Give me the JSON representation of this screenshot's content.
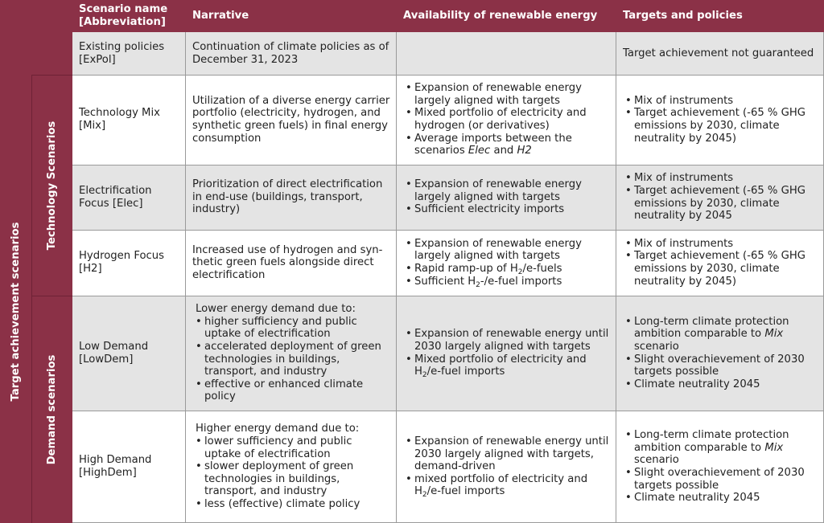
{
  "header": {
    "scenario": "Scenario name [Abbreviation]",
    "narrative": "Narrative",
    "availability": "Availability of renewable energy",
    "targets": "Targets and policies"
  },
  "groups": {
    "target_achievement": "Target achievement scenarios",
    "technology": "Technology Scenarios",
    "demand": "Demand scenarios"
  },
  "rows": {
    "expol": {
      "name": "Existing policies [ExPol]",
      "narrative": "Continuation of climate policies as of December 31, 2023",
      "targets": "Target achievement not guaranteed"
    },
    "mix": {
      "name": "Technology Mix [Mix]",
      "narrative": "Utilization of a diverse energy carrier portfolio (electricity, hydrogen, and synthetic green fuels) in final energy consumption",
      "availability": [
        "Expansion of renewable energy largely aligned with targets",
        "Mixed portfolio of electricity and hydrogen (or derivatives)",
        "Average imports between the scenarios",
        "Elec",
        "and",
        "H2"
      ],
      "targets": [
        "Mix of instruments",
        "Target achievement (-65 % GHG emissions by 2030, climate neutrality by 2045)"
      ]
    },
    "elec": {
      "name": "Electrification Focus [Elec]",
      "narrative": "Prioritization of direct electrification in end-use (buildings, transport, industry)",
      "availability": [
        "Expansion of renewable energy largely aligned with targets",
        "Sufficient electricity imports"
      ],
      "targets": [
        "Mix of instruments",
        "Target achievement (-65 % GHG emissions by 2030, climate neutrality by 2045"
      ]
    },
    "h2": {
      "name": "Hydrogen Focus [H2]",
      "narrative": "Increased use of hydrogen and syn-thetic green fuels alongside direct electrification",
      "availability": [
        "Expansion of renewable energy largely aligned with targets",
        "Rapid ramp-up of H",
        "2",
        "/e-fuels",
        "Sufficient H",
        "2",
        "-/e-fuel imports"
      ],
      "targets": [
        "Mix of instruments",
        "Target achievement (-65 % GHG emissions by 2030, climate neutrality by 2045)"
      ]
    },
    "lowdem": {
      "name": "Low Demand [LowDem]",
      "narrative_intro": "Lower energy demand due to:",
      "narrative": [
        "higher sufficiency and public uptake of electrification",
        "accelerated deployment of green technologies in buildings, transport, and industry",
        "effective or enhanced climate policy"
      ],
      "availability": [
        "Expansion of renewable energy until 2030 largely aligned with targets",
        "Mixed portfolio of electricity and H",
        "2",
        "/e-fuel imports"
      ],
      "targets": [
        "Long-term climate protection ambition comparable to",
        "Mix",
        "scenario",
        "Slight overachievement of 2030 targets possible",
        "Climate neutrality 2045"
      ]
    },
    "highdem": {
      "name": "High Demand [HighDem]",
      "narrative_intro": "Higher energy demand due to:",
      "narrative": [
        "lower sufficiency and public uptake of electrification",
        "slower deployment of green technologies in buildings, transport, and industry",
        "less (effective) climate policy"
      ],
      "availability": [
        "Expansion of renewable energy until 2030 largely aligned with targets, demand-driven",
        "mixed portfolio of electricity and H",
        "2",
        "/e-fuel imports"
      ],
      "targets": [
        "Long-term climate protection ambition comparable to",
        "Mix",
        "scenario",
        "Slight overachievement of 2030 targets possible",
        "Climate neutrality 2045"
      ]
    }
  }
}
